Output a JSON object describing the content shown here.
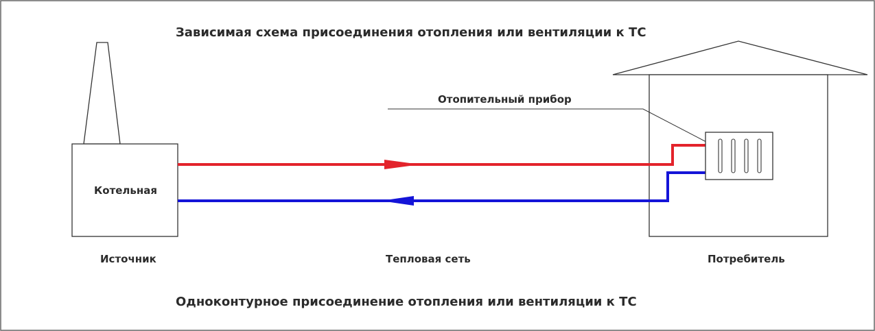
{
  "title": "Зависимая схема присоединения отопления или вентиляции к ТС",
  "subtitle": "Одноконтурное присоединение отопления или вентиляции к ТС",
  "boiler_label": "Котельная",
  "radiator_label": "Отопительный прибор",
  "captions": {
    "source": "Источник",
    "network": "Тепловая сеть",
    "consumer": "Потребитель"
  },
  "colors": {
    "supply": "#e3232b",
    "return": "#1414d8",
    "outline": "#333333"
  },
  "icons": {
    "chimney": "chimney-icon",
    "boiler": "boiler-house-icon",
    "house": "house-icon",
    "radiator": "radiator-icon"
  }
}
